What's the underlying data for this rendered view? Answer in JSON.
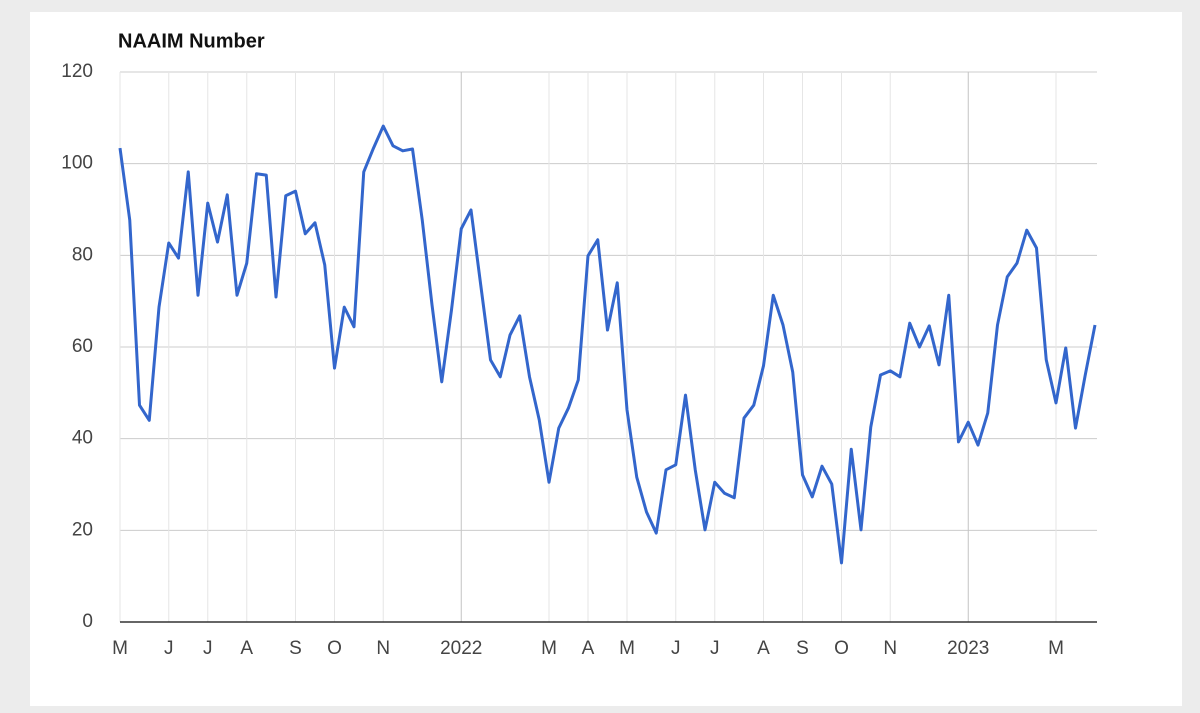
{
  "chart_data": {
    "type": "line",
    "title": "NAAIM Number",
    "categories": [
      "M",
      null,
      null,
      null,
      null,
      "J",
      null,
      null,
      null,
      "J",
      null,
      null,
      null,
      "A",
      null,
      null,
      null,
      null,
      "S",
      null,
      null,
      null,
      "O",
      null,
      null,
      null,
      null,
      "N",
      null,
      null,
      null,
      null,
      null,
      null,
      null,
      "2022",
      null,
      null,
      null,
      null,
      null,
      null,
      null,
      null,
      "M",
      null,
      null,
      null,
      "A",
      null,
      null,
      null,
      "M",
      null,
      null,
      null,
      null,
      "J",
      null,
      null,
      null,
      "J",
      null,
      null,
      null,
      null,
      "A",
      null,
      null,
      null,
      "S",
      null,
      null,
      null,
      "O",
      null,
      null,
      null,
      null,
      "N",
      null,
      null,
      null,
      null,
      null,
      null,
      null,
      "2023",
      null,
      null,
      null,
      null,
      null,
      null,
      null,
      null,
      "M",
      null,
      null,
      null,
      null
    ],
    "series": [
      {
        "name": "NAAIM Number",
        "color": "#3366cc",
        "values": [
          103.4,
          87.7,
          47.3,
          44,
          68.7,
          82.7,
          79.4,
          98.2,
          71.3,
          91.4,
          82.9,
          93.2,
          71.3,
          78.3,
          97.8,
          97.5,
          70.9,
          93,
          94,
          84.7,
          87.1,
          77.9,
          55.4,
          68.7,
          64.4,
          98.2,
          103.4,
          108.2,
          103.9,
          102.8,
          103.2,
          87.7,
          69.2,
          52.4,
          68.1,
          85.8,
          89.9,
          73.5,
          57.2,
          53.5,
          62.6,
          66.8,
          53.5,
          44.1,
          30.5,
          42.3,
          46.7,
          52.8,
          79.9,
          83.4,
          63.7,
          74,
          46.3,
          31.6,
          24,
          19.4,
          33.2,
          34.3,
          49.5,
          33.2,
          20.1,
          30.5,
          28.1,
          27.1,
          44.5,
          47.3,
          55.9,
          71.3,
          64.8,
          54.5,
          32.1,
          27.3,
          34,
          30.1,
          12.9,
          37.7,
          20.1,
          42.5,
          53.9,
          54.8,
          53.5,
          65.2,
          60,
          64.6,
          56.1,
          71.3,
          39.3,
          43.6,
          38.6,
          45.6,
          64.8,
          75.3,
          78.3,
          85.5,
          81.6,
          57.2,
          47.8,
          59.8,
          42.3,
          53.9,
          64.8
        ]
      }
    ],
    "ylim": [
      0,
      120
    ],
    "yticks": [
      0,
      20,
      40,
      60,
      80,
      100,
      120
    ],
    "grid": true
  }
}
